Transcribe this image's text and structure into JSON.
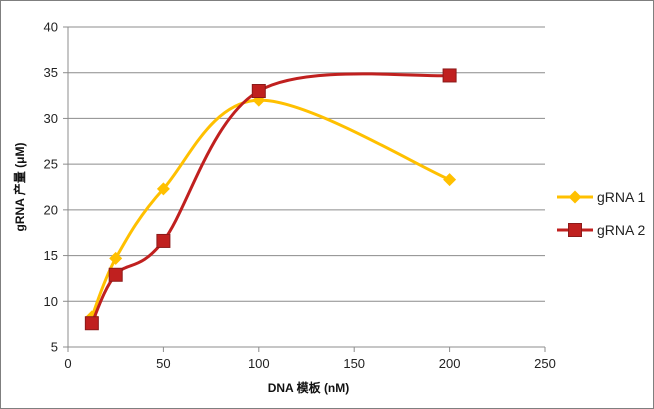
{
  "chart_data": {
    "type": "line",
    "xlabel": "DNA 模板 (nM)",
    "ylabel": "gRNA 产量 (μM)",
    "xlim": [
      0,
      250
    ],
    "ylim": [
      5,
      40
    ],
    "x_ticks": [
      "0",
      "50",
      "100",
      "150",
      "200",
      "250"
    ],
    "y_ticks": [
      "5",
      "10",
      "15",
      "20",
      "25",
      "30",
      "35",
      "40"
    ],
    "grid": "horizontal",
    "legend_position": "right",
    "series": [
      {
        "name": "gRNA 1",
        "color": "#FFC000",
        "marker": "diamond",
        "x": [
          12.5,
          25,
          50,
          100,
          200
        ],
        "y": [
          8.3,
          14.7,
          22.3,
          32.0,
          23.3
        ]
      },
      {
        "name": "gRNA 2",
        "color": "#C0201F",
        "marker": "square",
        "x": [
          12.5,
          25,
          50,
          100,
          200
        ],
        "y": [
          7.6,
          12.9,
          16.6,
          33.0,
          34.7
        ]
      }
    ]
  }
}
